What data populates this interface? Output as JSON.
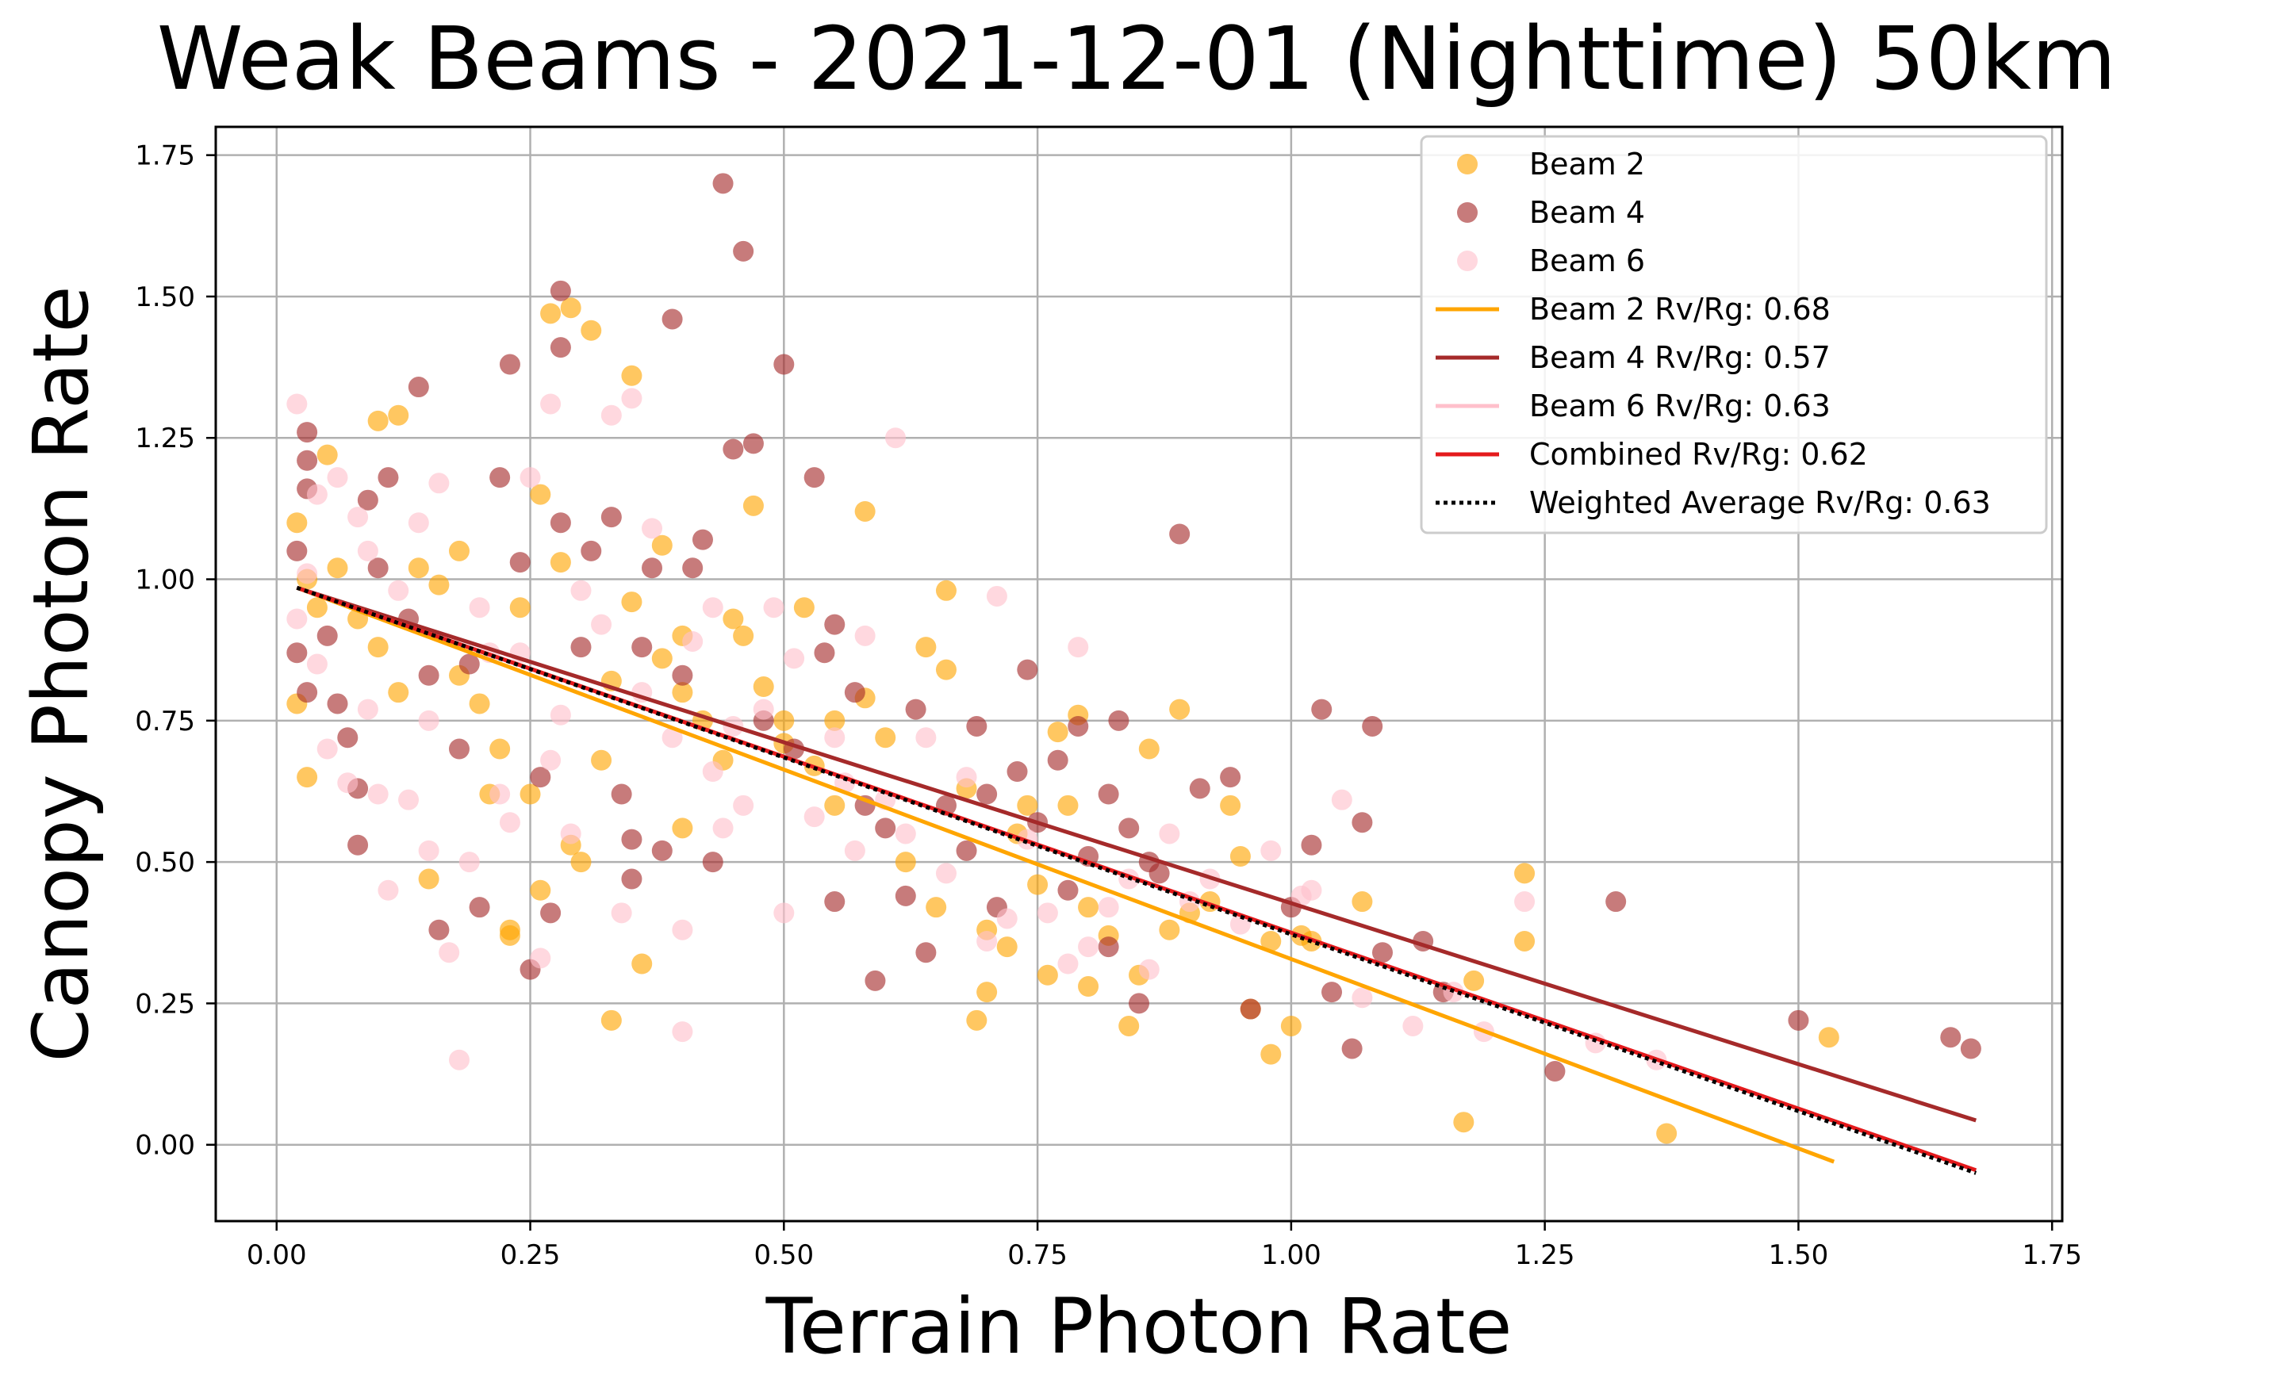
{
  "chart_data": {
    "type": "scatter",
    "title": "Weak Beams - 2021-12-01 (Nighttime) 50km",
    "xlabel": "Terrain Photon Rate",
    "ylabel": "Canopy Photon Rate",
    "xlim": [
      -0.06,
      1.76
    ],
    "ylim": [
      -0.135,
      1.8
    ],
    "xticks": [
      "0.00",
      "0.25",
      "0.50",
      "0.75",
      "1.00",
      "1.25",
      "1.50",
      "1.75"
    ],
    "yticks": [
      "0.00",
      "0.25",
      "0.50",
      "0.75",
      "1.00",
      "1.25",
      "1.50",
      "1.75"
    ],
    "grid": true,
    "legend_position": "top-right",
    "series": [
      {
        "name": "Beam 2",
        "color": "#FFA500",
        "points": [
          [
            0.02,
            1.1
          ],
          [
            0.03,
            1.0
          ],
          [
            0.04,
            0.95
          ],
          [
            0.05,
            1.22
          ],
          [
            0.06,
            1.02
          ],
          [
            0.02,
            0.78
          ],
          [
            0.03,
            0.65
          ],
          [
            0.08,
            0.93
          ],
          [
            0.1,
            0.88
          ],
          [
            0.1,
            1.28
          ],
          [
            0.12,
            1.29
          ],
          [
            0.14,
            1.02
          ],
          [
            0.16,
            0.99
          ],
          [
            0.18,
            0.83
          ],
          [
            0.18,
            1.05
          ],
          [
            0.2,
            0.78
          ],
          [
            0.21,
            0.62
          ],
          [
            0.22,
            0.7
          ],
          [
            0.23,
            0.38
          ],
          [
            0.23,
            0.37
          ],
          [
            0.24,
            0.95
          ],
          [
            0.25,
            0.62
          ],
          [
            0.26,
            0.45
          ],
          [
            0.26,
            1.15
          ],
          [
            0.27,
            1.47
          ],
          [
            0.29,
            1.48
          ],
          [
            0.29,
            0.53
          ],
          [
            0.3,
            0.5
          ],
          [
            0.31,
            1.44
          ],
          [
            0.32,
            0.68
          ],
          [
            0.33,
            0.82
          ],
          [
            0.33,
            0.22
          ],
          [
            0.35,
            1.36
          ],
          [
            0.35,
            0.96
          ],
          [
            0.36,
            0.32
          ],
          [
            0.38,
            0.86
          ],
          [
            0.38,
            1.06
          ],
          [
            0.4,
            0.8
          ],
          [
            0.4,
            0.9
          ],
          [
            0.42,
            0.75
          ],
          [
            0.44,
            0.68
          ],
          [
            0.45,
            0.93
          ],
          [
            0.46,
            0.9
          ],
          [
            0.47,
            1.13
          ],
          [
            0.48,
            0.81
          ],
          [
            0.5,
            0.75
          ],
          [
            0.5,
            0.71
          ],
          [
            0.52,
            0.95
          ],
          [
            0.53,
            0.67
          ],
          [
            0.55,
            0.6
          ],
          [
            0.58,
            1.12
          ],
          [
            0.58,
            0.79
          ],
          [
            0.6,
            0.72
          ],
          [
            0.62,
            0.5
          ],
          [
            0.64,
            0.88
          ],
          [
            0.66,
            0.98
          ],
          [
            0.66,
            0.84
          ],
          [
            0.68,
            0.63
          ],
          [
            0.69,
            0.22
          ],
          [
            0.7,
            0.27
          ],
          [
            0.7,
            0.38
          ],
          [
            0.72,
            0.35
          ],
          [
            0.73,
            0.55
          ],
          [
            0.75,
            0.46
          ],
          [
            0.76,
            0.3
          ],
          [
            0.77,
            0.73
          ],
          [
            0.78,
            0.6
          ],
          [
            0.79,
            0.76
          ],
          [
            0.8,
            0.42
          ],
          [
            0.8,
            0.28
          ],
          [
            0.82,
            0.37
          ],
          [
            0.84,
            0.21
          ],
          [
            0.85,
            0.3
          ],
          [
            0.86,
            0.7
          ],
          [
            0.88,
            0.38
          ],
          [
            0.89,
            0.77
          ],
          [
            0.9,
            0.41
          ],
          [
            0.92,
            0.43
          ],
          [
            0.94,
            0.6
          ],
          [
            0.95,
            0.51
          ],
          [
            0.96,
            0.24
          ],
          [
            0.98,
            0.16
          ],
          [
            0.98,
            0.36
          ],
          [
            1.0,
            0.21
          ],
          [
            1.01,
            0.37
          ],
          [
            1.02,
            0.36
          ],
          [
            1.07,
            0.43
          ],
          [
            1.17,
            0.04
          ],
          [
            1.18,
            0.29
          ],
          [
            1.23,
            0.36
          ],
          [
            1.23,
            0.48
          ],
          [
            1.37,
            0.02
          ],
          [
            1.53,
            0.19
          ],
          [
            0.15,
            0.47
          ],
          [
            0.28,
            1.03
          ],
          [
            0.4,
            0.56
          ],
          [
            0.55,
            0.75
          ],
          [
            0.65,
            0.42
          ],
          [
            0.74,
            0.6
          ],
          [
            0.12,
            0.8
          ]
        ]
      },
      {
        "name": "Beam 4",
        "color": "#A52A2A",
        "points": [
          [
            0.02,
            1.05
          ],
          [
            0.02,
            0.87
          ],
          [
            0.03,
            1.26
          ],
          [
            0.03,
            1.21
          ],
          [
            0.03,
            1.16
          ],
          [
            0.03,
            0.8
          ],
          [
            0.05,
            0.9
          ],
          [
            0.06,
            0.78
          ],
          [
            0.07,
            0.72
          ],
          [
            0.08,
            0.53
          ],
          [
            0.08,
            0.63
          ],
          [
            0.09,
            1.14
          ],
          [
            0.1,
            1.02
          ],
          [
            0.11,
            1.18
          ],
          [
            0.13,
            0.93
          ],
          [
            0.14,
            1.34
          ],
          [
            0.15,
            0.83
          ],
          [
            0.16,
            0.38
          ],
          [
            0.18,
            0.7
          ],
          [
            0.19,
            0.85
          ],
          [
            0.2,
            0.42
          ],
          [
            0.22,
            1.18
          ],
          [
            0.23,
            1.38
          ],
          [
            0.24,
            1.03
          ],
          [
            0.25,
            0.31
          ],
          [
            0.26,
            0.65
          ],
          [
            0.27,
            0.41
          ],
          [
            0.28,
            1.51
          ],
          [
            0.28,
            1.41
          ],
          [
            0.28,
            1.1
          ],
          [
            0.3,
            0.88
          ],
          [
            0.31,
            1.05
          ],
          [
            0.33,
            1.11
          ],
          [
            0.34,
            0.62
          ],
          [
            0.35,
            0.54
          ],
          [
            0.36,
            0.88
          ],
          [
            0.37,
            1.02
          ],
          [
            0.38,
            0.52
          ],
          [
            0.39,
            1.46
          ],
          [
            0.4,
            0.83
          ],
          [
            0.41,
            1.02
          ],
          [
            0.42,
            1.07
          ],
          [
            0.43,
            0.5
          ],
          [
            0.44,
            1.7
          ],
          [
            0.45,
            1.23
          ],
          [
            0.46,
            1.58
          ],
          [
            0.47,
            1.24
          ],
          [
            0.48,
            0.75
          ],
          [
            0.5,
            1.38
          ],
          [
            0.51,
            0.7
          ],
          [
            0.53,
            1.18
          ],
          [
            0.54,
            0.87
          ],
          [
            0.55,
            0.92
          ],
          [
            0.55,
            0.43
          ],
          [
            0.57,
            0.8
          ],
          [
            0.59,
            0.29
          ],
          [
            0.6,
            0.56
          ],
          [
            0.62,
            0.44
          ],
          [
            0.63,
            0.77
          ],
          [
            0.64,
            0.34
          ],
          [
            0.66,
            0.6
          ],
          [
            0.68,
            0.52
          ],
          [
            0.69,
            0.74
          ],
          [
            0.7,
            0.62
          ],
          [
            0.71,
            0.42
          ],
          [
            0.73,
            0.66
          ],
          [
            0.74,
            0.84
          ],
          [
            0.75,
            0.57
          ],
          [
            0.77,
            0.68
          ],
          [
            0.78,
            0.45
          ],
          [
            0.79,
            0.74
          ],
          [
            0.8,
            0.51
          ],
          [
            0.82,
            0.62
          ],
          [
            0.82,
            0.35
          ],
          [
            0.83,
            0.75
          ],
          [
            0.84,
            0.56
          ],
          [
            0.85,
            0.25
          ],
          [
            0.86,
            0.5
          ],
          [
            0.87,
            0.48
          ],
          [
            0.89,
            1.08
          ],
          [
            0.91,
            0.63
          ],
          [
            0.94,
            0.65
          ],
          [
            0.96,
            0.24
          ],
          [
            1.0,
            0.42
          ],
          [
            1.02,
            0.53
          ],
          [
            1.03,
            0.77
          ],
          [
            1.04,
            0.27
          ],
          [
            1.06,
            0.17
          ],
          [
            1.07,
            0.57
          ],
          [
            1.08,
            0.74
          ],
          [
            1.09,
            0.34
          ],
          [
            1.13,
            0.36
          ],
          [
            1.15,
            0.27
          ],
          [
            1.26,
            0.13
          ],
          [
            1.32,
            0.43
          ],
          [
            1.5,
            0.22
          ],
          [
            1.65,
            0.19
          ],
          [
            1.67,
            0.17
          ],
          [
            0.35,
            0.47
          ],
          [
            0.58,
            0.6
          ]
        ]
      },
      {
        "name": "Beam 6",
        "color": "#FFC0CB",
        "points": [
          [
            0.02,
            1.31
          ],
          [
            0.02,
            0.93
          ],
          [
            0.03,
            1.01
          ],
          [
            0.04,
            1.15
          ],
          [
            0.05,
            0.7
          ],
          [
            0.06,
            1.18
          ],
          [
            0.07,
            0.64
          ],
          [
            0.08,
            1.11
          ],
          [
            0.09,
            0.77
          ],
          [
            0.1,
            0.62
          ],
          [
            0.11,
            0.45
          ],
          [
            0.12,
            0.98
          ],
          [
            0.13,
            0.61
          ],
          [
            0.14,
            1.1
          ],
          [
            0.15,
            0.52
          ],
          [
            0.16,
            1.17
          ],
          [
            0.17,
            0.34
          ],
          [
            0.18,
            0.15
          ],
          [
            0.19,
            0.5
          ],
          [
            0.2,
            0.95
          ],
          [
            0.21,
            0.87
          ],
          [
            0.22,
            0.62
          ],
          [
            0.23,
            0.57
          ],
          [
            0.24,
            0.87
          ],
          [
            0.25,
            1.18
          ],
          [
            0.26,
            0.33
          ],
          [
            0.27,
            1.31
          ],
          [
            0.28,
            0.76
          ],
          [
            0.29,
            0.55
          ],
          [
            0.3,
            0.98
          ],
          [
            0.32,
            0.92
          ],
          [
            0.33,
            1.29
          ],
          [
            0.34,
            0.41
          ],
          [
            0.35,
            1.32
          ],
          [
            0.36,
            0.8
          ],
          [
            0.37,
            1.09
          ],
          [
            0.39,
            0.72
          ],
          [
            0.4,
            0.2
          ],
          [
            0.4,
            0.38
          ],
          [
            0.41,
            0.89
          ],
          [
            0.43,
            0.66
          ],
          [
            0.44,
            0.56
          ],
          [
            0.45,
            0.74
          ],
          [
            0.46,
            0.6
          ],
          [
            0.48,
            0.77
          ],
          [
            0.49,
            0.95
          ],
          [
            0.5,
            0.41
          ],
          [
            0.51,
            0.86
          ],
          [
            0.53,
            0.58
          ],
          [
            0.55,
            0.72
          ],
          [
            0.56,
            0.64
          ],
          [
            0.57,
            0.52
          ],
          [
            0.58,
            0.9
          ],
          [
            0.6,
            0.61
          ],
          [
            0.61,
            1.25
          ],
          [
            0.62,
            0.55
          ],
          [
            0.64,
            0.72
          ],
          [
            0.66,
            0.48
          ],
          [
            0.68,
            0.65
          ],
          [
            0.7,
            0.36
          ],
          [
            0.71,
            0.97
          ],
          [
            0.72,
            0.4
          ],
          [
            0.74,
            0.54
          ],
          [
            0.76,
            0.41
          ],
          [
            0.78,
            0.32
          ],
          [
            0.79,
            0.88
          ],
          [
            0.8,
            0.35
          ],
          [
            0.82,
            0.42
          ],
          [
            0.84,
            0.47
          ],
          [
            0.86,
            0.31
          ],
          [
            0.88,
            0.55
          ],
          [
            0.9,
            0.43
          ],
          [
            0.92,
            0.47
          ],
          [
            0.95,
            0.39
          ],
          [
            0.98,
            0.52
          ],
          [
            1.01,
            0.44
          ],
          [
            1.02,
            0.45
          ],
          [
            1.05,
            0.61
          ],
          [
            1.07,
            0.26
          ],
          [
            1.12,
            0.21
          ],
          [
            1.16,
            0.27
          ],
          [
            1.19,
            0.2
          ],
          [
            1.23,
            0.43
          ],
          [
            1.3,
            0.18
          ],
          [
            1.36,
            0.15
          ],
          [
            0.04,
            0.85
          ],
          [
            0.09,
            1.05
          ],
          [
            0.15,
            0.75
          ],
          [
            0.27,
            0.68
          ],
          [
            0.43,
            0.95
          ]
        ]
      }
    ],
    "trend_lines": [
      {
        "name": "Beam 2 Rv/Rg: 0.68",
        "color": "#FFA500",
        "style": "solid",
        "x": [
          0.02,
          1.535
        ],
        "y": [
          0.985,
          -0.03
        ]
      },
      {
        "name": "Beam 4 Rv/Rg: 0.57",
        "color": "#A52A2A",
        "style": "solid",
        "x": [
          0.02,
          1.675
        ],
        "y": [
          0.985,
          0.043
        ]
      },
      {
        "name": "Beam 6 Rv/Rg: 0.63",
        "color": "#FFC0CB",
        "style": "solid",
        "x": [
          0.02,
          1.675
        ],
        "y": [
          0.985,
          -0.045
        ]
      },
      {
        "name": "Combined Rv/Rg: 0.62",
        "color": "#E41A1C",
        "style": "solid",
        "x": [
          0.02,
          1.675
        ],
        "y": [
          0.985,
          -0.045
        ]
      },
      {
        "name": "Weighted Average Rv/Rg: 0.63",
        "color": "#000000",
        "style": "dotted",
        "x": [
          0.02,
          1.675
        ],
        "y": [
          0.985,
          -0.05
        ]
      }
    ]
  }
}
